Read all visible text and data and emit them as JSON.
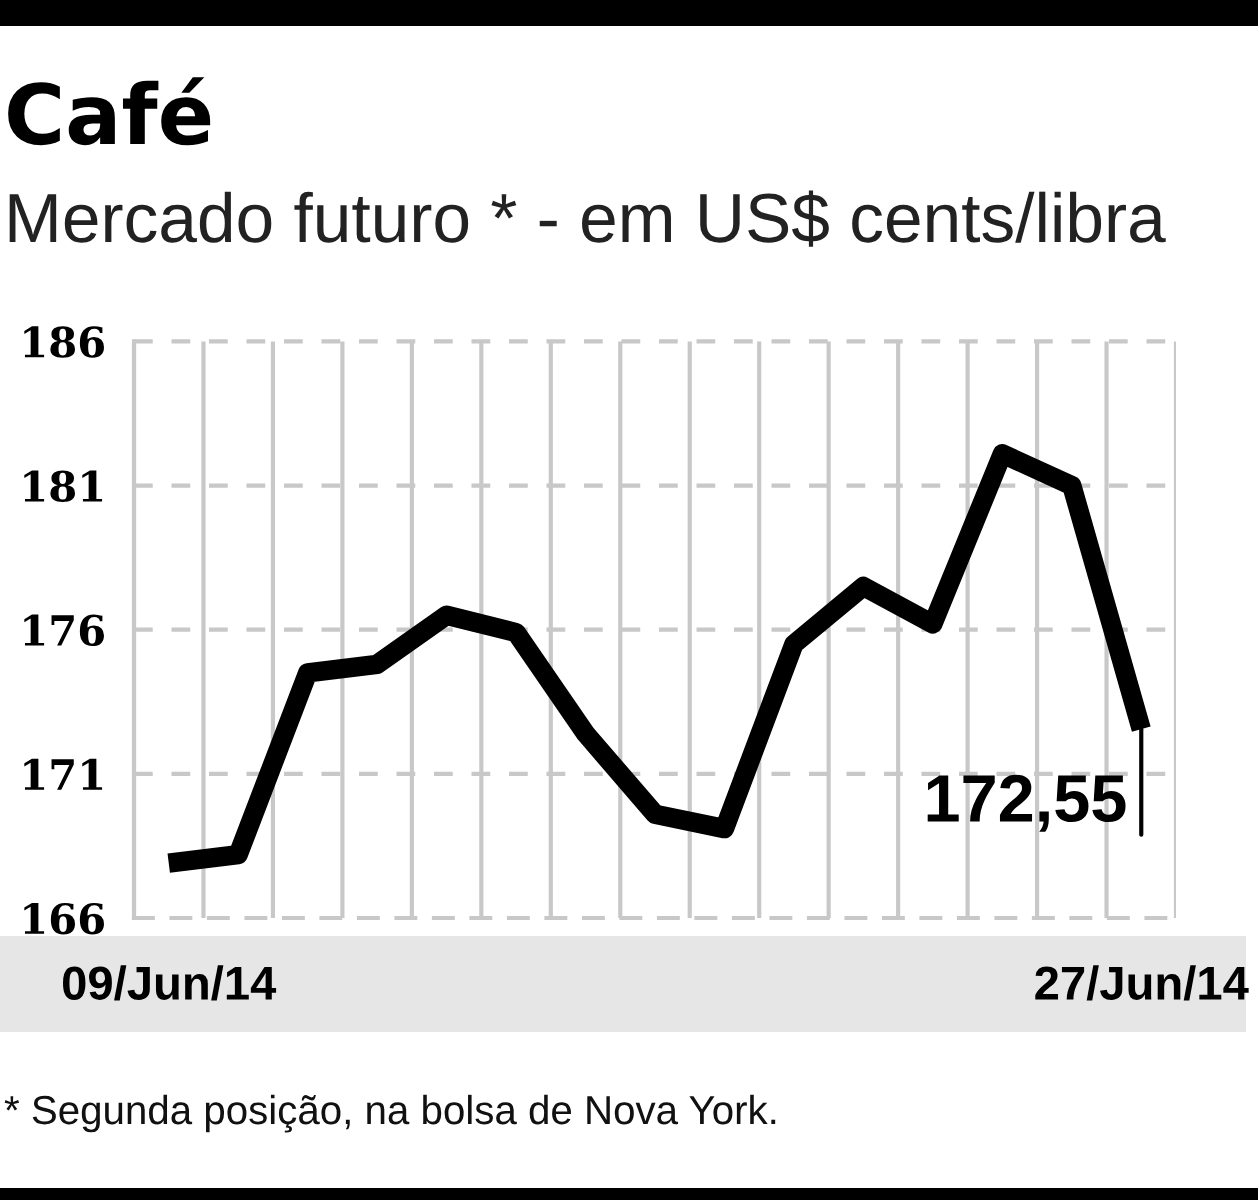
{
  "chart_data": {
    "type": "line",
    "title": "Café",
    "subtitle": "Mercado futuro * - em US$ cents/libra",
    "categories": [
      "09/Jun/14",
      null,
      null,
      null,
      null,
      null,
      null,
      null,
      null,
      null,
      null,
      null,
      null,
      null,
      "27/Jun/14"
    ],
    "values": [
      167.9,
      168.2,
      174.5,
      174.8,
      176.5,
      175.9,
      172.4,
      169.6,
      169.1,
      175.5,
      177.5,
      176.2,
      182.1,
      181.0,
      172.55
    ],
    "color": "#000000",
    "value_labels": [
      null,
      null,
      null,
      null,
      null,
      null,
      null,
      null,
      null,
      null,
      null,
      null,
      null,
      null,
      "172,55"
    ],
    "ylim": [
      166,
      186
    ],
    "yticks": [
      166,
      171,
      176,
      181,
      186
    ],
    "grid": true,
    "annotations": [
      "* Segunda posição, na bolsa de Nova York."
    ]
  }
}
